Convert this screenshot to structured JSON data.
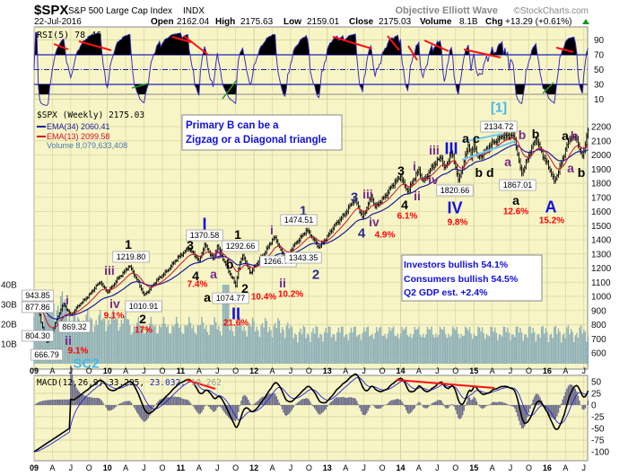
{
  "header": {
    "symbol": "$SPX",
    "name": "S&P 500 Large Cap Index",
    "exchange": "INDX",
    "credit": "Objective Elliott Wave",
    "site": "©StockCharts.com",
    "date": "22-Jul-2016",
    "open_label": "Open",
    "open": "2162.04",
    "high_label": "High",
    "high": "2175.63",
    "low_label": "Low",
    "low": "2159.01",
    "close_label": "Close",
    "close": "2175.03",
    "volume_label": "Volume",
    "volume": "8.1B",
    "chg_label": "Chg",
    "chg": "+13.29 (+0.61%)"
  },
  "legend": {
    "rsi": "RSI(5) 78.46",
    "price": "$SPX (Weekly) 2175.03",
    "ema34": "EMA(34) 2060.41",
    "ema13": "EMA(13) 2099.58",
    "volume": "Volume 8,079,633,408",
    "macd": "MACD(12,26,9) 33.295,",
    "macd_signal": "23.032,",
    "macd_hist": "10.262"
  },
  "notes": {
    "primary_b_line1": "Primary B can be a",
    "primary_b_line2": "Zigzag or a Diagonal triangle",
    "investors": "Investors bullish 54.1%",
    "consumers": "Consumers bullish 54.5%",
    "gdp": "Q2 GDP est. +2.4%"
  },
  "colors": {
    "panel_bg": "#f7f5c6",
    "grid": "#d9d6a0",
    "ema34": "#1a1aa0",
    "ema13": "#d0102a",
    "volume": "#8fb0b8",
    "rsi": "#3a2ec0",
    "wave_blue": "#1010e0",
    "wave_purple": "#7a2a8a",
    "wave_red": "#ff0000",
    "wave_cyan": "#3fb8f0"
  },
  "chart_data": {
    "type": "line",
    "title": "$SPX S&P 500 Large Cap Index (Weekly)",
    "x_ticks": [
      "09",
      "A",
      "J",
      "O",
      "10",
      "A",
      "J",
      "O",
      "11",
      "A",
      "J",
      "O",
      "12",
      "A",
      "J",
      "O",
      "13",
      "A",
      "J",
      "O",
      "14",
      "A",
      "J",
      "O",
      "15",
      "A",
      "J",
      "O",
      "16",
      "A",
      "J"
    ],
    "price_ticks": [
      2200,
      2100,
      2000,
      1900,
      1800,
      1700,
      1600,
      1500,
      1400,
      1300,
      1200,
      1100,
      1000,
      900,
      800,
      700,
      600
    ],
    "rsi_ticks": [
      90,
      70,
      50,
      30,
      10
    ],
    "macd_ticks": [
      50,
      25,
      0,
      -25,
      -50,
      -75,
      -100
    ],
    "volume_ticks": [
      "40B",
      "30B",
      "20B",
      "10B"
    ],
    "ylim": [
      600,
      2200
    ],
    "pivots": [
      [
        2009.0,
        931
      ],
      [
        2009.05,
        943.85
      ],
      [
        2009.1,
        804.3
      ],
      [
        2009.18,
        666.79
      ],
      [
        2009.4,
        950
      ],
      [
        2009.5,
        869.32
      ],
      [
        2009.9,
        1100
      ],
      [
        2010.0,
        1030
      ],
      [
        2010.3,
        1219.8
      ],
      [
        2010.5,
        1010.91
      ],
      [
        2011.1,
        1345
      ],
      [
        2011.25,
        1250
      ],
      [
        2011.33,
        1370.58
      ],
      [
        2011.45,
        1260
      ],
      [
        2011.5,
        1356
      ],
      [
        2011.75,
        1074.77
      ],
      [
        2011.8,
        1230
      ],
      [
        2011.85,
        1292.66
      ],
      [
        2011.95,
        1160
      ],
      [
        2012.28,
        1422
      ],
      [
        2012.42,
        1266.74
      ],
      [
        2012.72,
        1474.51
      ],
      [
        2012.88,
        1343.35
      ],
      [
        2013.38,
        1687
      ],
      [
        2013.48,
        1560
      ],
      [
        2013.6,
        1709
      ],
      [
        2013.65,
        1627
      ],
      [
        2014.0,
        1850
      ],
      [
        2014.1,
        1737
      ],
      [
        2014.25,
        1897
      ],
      [
        2014.3,
        1814
      ],
      [
        2014.55,
        1991
      ],
      [
        2014.6,
        1904
      ],
      [
        2014.7,
        2019
      ],
      [
        2014.79,
        1820.66
      ],
      [
        2014.93,
        2079
      ],
      [
        2014.96,
        1972
      ],
      [
        2015.0,
        2093
      ],
      [
        2015.05,
        1980
      ],
      [
        2015.38,
        2134.72
      ],
      [
        2015.55,
        2128
      ],
      [
        2015.65,
        1867.01
      ],
      [
        2015.85,
        2116
      ],
      [
        2016.1,
        1810
      ],
      [
        2016.3,
        2111
      ],
      [
        2016.4,
        2120
      ],
      [
        2016.45,
        2025
      ],
      [
        2016.48,
        1991
      ],
      [
        2016.56,
        2175.03
      ]
    ],
    "annotations": [
      {
        "text": "943.85",
        "style": "box"
      },
      {
        "text": "877.86",
        "style": "box"
      },
      {
        "text": "804.30",
        "style": "box"
      },
      {
        "text": "666.79",
        "style": "box"
      },
      {
        "text": "SC2",
        "style": "cyan"
      },
      {
        "text": "i",
        "style": "purple"
      },
      {
        "text": "ii",
        "style": "purple"
      },
      {
        "text": "9.1%",
        "style": "red"
      },
      {
        "text": "869.32",
        "style": "box"
      },
      {
        "text": "iii",
        "style": "purple"
      },
      {
        "text": "iv",
        "style": "purple"
      },
      {
        "text": "9.1%",
        "style": "red"
      },
      {
        "text": "1",
        "style": "black"
      },
      {
        "text": "1219.80",
        "style": "box"
      },
      {
        "text": "1010.91",
        "style": "box"
      },
      {
        "text": "2",
        "style": "black"
      },
      {
        "text": "17%",
        "style": "red"
      },
      {
        "text": "3",
        "style": "black"
      },
      {
        "text": "1370.58",
        "style": "box"
      },
      {
        "text": "I",
        "style": "blue"
      },
      {
        "text": "4",
        "style": "black"
      },
      {
        "text": "7.4%",
        "style": "red"
      },
      {
        "text": "a",
        "style": "purple"
      },
      {
        "text": "b",
        "style": "purple"
      },
      {
        "text": "b",
        "style": "black"
      },
      {
        "text": "1",
        "style": "black"
      },
      {
        "text": "1292.66",
        "style": "box"
      },
      {
        "text": "a",
        "style": "black"
      },
      {
        "text": "1074.77",
        "style": "box"
      },
      {
        "text": "2",
        "style": "black"
      },
      {
        "text": "10.4%",
        "style": "red"
      },
      {
        "text": "II",
        "style": "blue"
      },
      {
        "text": "21.6%",
        "style": "red"
      },
      {
        "text": "10.2%",
        "style": "red"
      },
      {
        "text": "ii",
        "style": "purple"
      },
      {
        "text": "1266.74",
        "style": "box"
      },
      {
        "text": "i",
        "style": "purple"
      },
      {
        "text": "1",
        "style": "navy"
      },
      {
        "text": "1474.51",
        "style": "box"
      },
      {
        "text": "1343.35",
        "style": "box"
      },
      {
        "text": "2",
        "style": "navy"
      },
      {
        "text": "3",
        "style": "navy"
      },
      {
        "text": "iii",
        "style": "purple"
      },
      {
        "text": "4",
        "style": "navy"
      },
      {
        "text": "iv",
        "style": "purple"
      },
      {
        "text": "4.9%",
        "style": "red"
      },
      {
        "text": "3",
        "style": "black"
      },
      {
        "text": "i",
        "style": "purple"
      },
      {
        "text": "4",
        "style": "black"
      },
      {
        "text": "ii",
        "style": "purple"
      },
      {
        "text": "6.1%",
        "style": "red"
      },
      {
        "text": "iii",
        "style": "purple"
      },
      {
        "text": "III",
        "style": "blue"
      },
      {
        "text": "iv",
        "style": "purple"
      },
      {
        "text": "1820.66",
        "style": "box"
      },
      {
        "text": "IV",
        "style": "blue"
      },
      {
        "text": "9.8%",
        "style": "red"
      },
      {
        "text": "a c",
        "style": "black"
      },
      {
        "text": "b d",
        "style": "black"
      },
      {
        "text": "[1]",
        "style": "cyan"
      },
      {
        "text": "2134.72",
        "style": "box"
      },
      {
        "text": "b",
        "style": "purple"
      },
      {
        "text": "a",
        "style": "purple"
      },
      {
        "text": "1867.01",
        "style": "box"
      },
      {
        "text": "a",
        "style": "black"
      },
      {
        "text": "12.6%",
        "style": "red"
      },
      {
        "text": "b",
        "style": "black"
      },
      {
        "text": "A",
        "style": "blue"
      },
      {
        "text": "15.2%",
        "style": "red"
      },
      {
        "text": "a",
        "style": "black"
      },
      {
        "text": "b",
        "style": "purple"
      },
      {
        "text": "a",
        "style": "purple"
      },
      {
        "text": "b",
        "style": "black"
      }
    ]
  }
}
